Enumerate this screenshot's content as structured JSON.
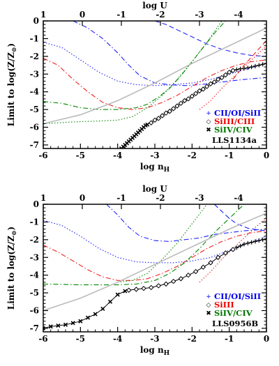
{
  "chart_data": [
    {
      "type": "line",
      "xlabel": "log n",
      "xlabel_sub": "H",
      "top_label": "log U",
      "ylabel": "Limit to log(Z/Z",
      "ylabel_sub": "⊙",
      "ylabel_end": ")",
      "xlim": [
        -6,
        0
      ],
      "ylim": [
        -7.2,
        0
      ],
      "x_ticks": [
        "-6",
        "-5",
        "-4",
        "-3",
        "-2",
        "-1",
        "0"
      ],
      "y_ticks": [
        "0",
        "-1",
        "-2",
        "-3",
        "-4",
        "-5",
        "-6",
        "-7"
      ],
      "top_ticks": [
        {
          "label": "1",
          "x": -6.0
        },
        {
          "label": "0",
          "x": -4.95
        },
        {
          "label": "-1",
          "x": -3.9
        },
        {
          "label": "-2",
          "x": -2.85
        },
        {
          "label": "-3",
          "x": -1.8
        },
        {
          "label": "-4",
          "x": -0.75
        }
      ],
      "legend": [
        {
          "label": "CII/OI/SiII",
          "color": "#0000ee",
          "marker": "+"
        },
        {
          "label": "SiIII/CIII",
          "color": "#ee0000",
          "marker": "◇"
        },
        {
          "label": "SiIV/CIV",
          "color": "#007700",
          "marker": "✖"
        }
      ],
      "panel_label": "LLS1134a",
      "series": [
        {
          "color": "#2020ff",
          "style": "dashdot",
          "x": [
            -5.2,
            -4.8,
            -4.4,
            -4.0,
            -3.7,
            -3.4,
            -3.0,
            -2.6,
            -2.2,
            -1.8,
            -1.4,
            -1.0,
            -0.6,
            -0.3,
            0.0
          ],
          "y": [
            0.0,
            -0.4,
            -1.0,
            -1.8,
            -2.5,
            -3.1,
            -3.5,
            -3.6,
            -3.65,
            -3.6,
            -3.5,
            -3.4,
            -3.3,
            -3.25,
            -3.2
          ]
        },
        {
          "color": "#2020ff",
          "style": "dash",
          "x": [
            -3.0,
            -2.7,
            -2.4,
            -2.0,
            -1.6,
            -1.2,
            -0.8,
            -0.4,
            0.0
          ],
          "y": [
            0.0,
            -0.2,
            -0.5,
            -0.9,
            -1.3,
            -1.6,
            -1.8,
            -1.95,
            -2.0
          ]
        },
        {
          "color": "#2020ff",
          "style": "dot",
          "x": [
            -6.0,
            -5.5,
            -5.0,
            -4.5,
            -4.0,
            -3.5,
            -3.0,
            -2.5,
            -2.0,
            -1.5,
            -1.0,
            -0.5,
            0.0
          ],
          "y": [
            -1.2,
            -1.5,
            -2.2,
            -2.9,
            -3.4,
            -3.6,
            -3.65,
            -3.6,
            -3.5,
            -3.3,
            -3.0,
            -2.7,
            -2.4
          ]
        },
        {
          "color": "#ee2020",
          "style": "dashdot",
          "x": [
            -6.0,
            -5.6,
            -5.2,
            -4.8,
            -4.4,
            -4.0,
            -3.6,
            -3.2,
            -2.8,
            -2.4,
            -2.0,
            -1.6,
            -1.2,
            -0.8,
            -0.4,
            0.0
          ],
          "y": [
            -2.1,
            -2.5,
            -3.3,
            -4.0,
            -4.6,
            -4.9,
            -5.0,
            -4.9,
            -4.6,
            -4.2,
            -3.7,
            -3.2,
            -2.8,
            -2.5,
            -2.3,
            -2.2
          ]
        },
        {
          "color": "#ee2020",
          "style": "dot",
          "x": [
            -1.8,
            -1.5,
            -1.2,
            -0.9,
            -0.6,
            -0.3,
            0.0
          ],
          "y": [
            -5.0,
            -4.5,
            -3.8,
            -3.2,
            -2.6,
            -2.0,
            -1.4
          ]
        },
        {
          "color": "#ee2020",
          "style": "dash",
          "x": [
            -0.9,
            -0.6,
            -0.3,
            0.0
          ],
          "y": [
            -3.3,
            -2.5,
            -1.8,
            -1.1
          ]
        },
        {
          "color": "#008800",
          "style": "dashdot",
          "x": [
            -6.0,
            -5.5,
            -5.0,
            -4.5,
            -4.0,
            -3.5,
            -3.2,
            -2.9,
            -2.6,
            -2.3,
            -2.0,
            -1.7,
            -1.4,
            -1.1
          ],
          "y": [
            -4.55,
            -4.65,
            -4.9,
            -5.0,
            -5.0,
            -4.9,
            -4.7,
            -4.3,
            -3.8,
            -3.1,
            -2.3,
            -1.5,
            -0.7,
            0.0
          ]
        },
        {
          "color": "#008800",
          "style": "dot",
          "x": [
            -6.0,
            -5.2,
            -4.5,
            -4.0,
            -3.6,
            -3.2,
            -2.8,
            -2.4,
            -2.0,
            -1.6,
            -1.2
          ],
          "y": [
            -5.8,
            -5.7,
            -5.65,
            -5.6,
            -5.4,
            -4.9,
            -4.2,
            -3.3,
            -2.3,
            -1.2,
            0.0
          ]
        },
        {
          "color": "#bbbbbb",
          "style": "solid",
          "x": [
            -6.0,
            -5.0,
            -4.0,
            -3.0,
            -2.0,
            -1.0,
            0.0
          ],
          "y": [
            -5.8,
            -5.3,
            -4.5,
            -3.5,
            -2.4,
            -1.4,
            -0.4
          ]
        }
      ],
      "markers": [
        {
          "color": "#000000",
          "marker": "x",
          "x": [
            -3.9,
            -3.85,
            -3.8,
            -3.75,
            -3.7,
            -3.65,
            -3.6,
            -3.55,
            -3.5,
            -3.45,
            -3.4,
            -3.35,
            -3.3,
            -3.25,
            -3.2
          ],
          "y": [
            -7.2,
            -7.1,
            -7.0,
            -6.9,
            -6.8,
            -6.7,
            -6.6,
            -6.5,
            -6.4,
            -6.3,
            -6.2,
            -6.1,
            -6.0,
            -5.9,
            -5.85
          ]
        },
        {
          "color": "#000000",
          "marker": "diamond",
          "x": [
            -3.1,
            -3.0,
            -2.9,
            -2.8,
            -2.7,
            -2.6,
            -2.5,
            -2.4,
            -2.3,
            -2.2,
            -2.1,
            -2.0,
            -1.9,
            -1.8,
            -1.7,
            -1.6,
            -1.5,
            -1.4,
            -1.3,
            -1.2,
            -1.1,
            -1.0,
            -0.9
          ],
          "y": [
            -5.75,
            -5.6,
            -5.5,
            -5.35,
            -5.2,
            -5.1,
            -4.95,
            -4.8,
            -4.65,
            -4.5,
            -4.4,
            -4.25,
            -4.1,
            -3.95,
            -3.85,
            -3.7,
            -3.55,
            -3.45,
            -3.3,
            -3.2,
            -3.05,
            -2.9,
            -2.8
          ]
        },
        {
          "color": "#000000",
          "marker": "plus",
          "x": [
            -0.8,
            -0.7,
            -0.6,
            -0.5,
            -0.4,
            -0.3,
            -0.2,
            -0.1,
            0.0
          ],
          "y": [
            -2.75,
            -2.7,
            -2.68,
            -2.65,
            -2.6,
            -2.55,
            -2.5,
            -2.45,
            -2.4
          ]
        }
      ]
    },
    {
      "type": "line",
      "xlabel": "log n",
      "xlabel_sub": "H",
      "top_label": "log U",
      "ylabel": "Limit to log(Z/Z",
      "ylabel_sub": "⊙",
      "ylabel_end": ")",
      "xlim": [
        -6,
        0
      ],
      "ylim": [
        -7.2,
        0
      ],
      "x_ticks": [
        "-6",
        "-5",
        "-4",
        "-3",
        "-2",
        "-1",
        "0"
      ],
      "y_ticks": [
        "0",
        "-1",
        "-2",
        "-3",
        "-4",
        "-5",
        "-6",
        "-7"
      ],
      "top_ticks": [
        {
          "label": "1",
          "x": -6.0
        },
        {
          "label": "0",
          "x": -4.95
        },
        {
          "label": "-1",
          "x": -3.9
        },
        {
          "label": "-2",
          "x": -2.85
        },
        {
          "label": "-3",
          "x": -1.8
        },
        {
          "label": "-4",
          "x": -0.75
        }
      ],
      "legend": [
        {
          "label": "CII/OI/SiII",
          "color": "#0000ee",
          "marker": "+"
        },
        {
          "label": "SiIII",
          "color": "#ee0000",
          "marker": "◇"
        },
        {
          "label": "SiIV/CIV",
          "color": "#007700",
          "marker": "✖"
        }
      ],
      "panel_label": "LLS0956B",
      "series": [
        {
          "color": "#2020ff",
          "style": "dashdot",
          "x": [
            -4.3,
            -4.0,
            -3.7,
            -3.4,
            -3.0,
            -2.6,
            -2.2,
            -1.8,
            -1.4,
            -1.0,
            -0.6,
            -0.3,
            0.0
          ],
          "y": [
            0.0,
            -0.6,
            -1.3,
            -1.8,
            -2.05,
            -2.1,
            -2.0,
            -1.9,
            -1.7,
            -1.6,
            -1.5,
            -1.45,
            -1.4
          ]
        },
        {
          "color": "#2020ff",
          "style": "dash",
          "x": [
            -1.4,
            -1.2,
            -1.0,
            -0.8,
            -0.5,
            -0.2,
            0.0
          ],
          "y": [
            0.0,
            -0.4,
            -0.8,
            -1.1,
            -1.35,
            -1.45,
            -1.5
          ]
        },
        {
          "color": "#2020ff",
          "style": "dot",
          "x": [
            -6.0,
            -5.5,
            -5.0,
            -4.5,
            -4.0,
            -3.5,
            -3.0,
            -2.5,
            -2.0,
            -1.5,
            -1.0,
            -0.5,
            0.0
          ],
          "y": [
            -0.9,
            -1.2,
            -1.8,
            -2.5,
            -3.0,
            -3.25,
            -3.3,
            -3.3,
            -3.2,
            -3.0,
            -2.6,
            -2.2,
            -1.8
          ]
        },
        {
          "color": "#ee2020",
          "style": "dashdot",
          "x": [
            -6.0,
            -5.6,
            -5.2,
            -4.8,
            -4.4,
            -4.0,
            -3.6,
            -3.2,
            -2.8,
            -2.4,
            -2.0,
            -1.6,
            -1.2,
            -0.8,
            -0.4,
            0.0
          ],
          "y": [
            -2.3,
            -2.7,
            -3.2,
            -3.7,
            -4.1,
            -4.3,
            -4.3,
            -4.2,
            -3.9,
            -3.5,
            -3.0,
            -2.5,
            -2.1,
            -1.8,
            -1.6,
            -1.5
          ]
        },
        {
          "color": "#ee2020",
          "style": "dot",
          "x": [
            -1.8,
            -1.5,
            -1.2,
            -0.9,
            -0.6,
            -0.3,
            0.0
          ],
          "y": [
            -4.4,
            -3.8,
            -3.1,
            -2.5,
            -1.9,
            -1.3,
            -0.8
          ]
        },
        {
          "color": "#008800",
          "style": "dashdot",
          "x": [
            -6.0,
            -5.5,
            -5.0,
            -4.5,
            -4.0,
            -3.5,
            -3.0,
            -2.6,
            -2.2,
            -1.8,
            -1.4,
            -1.0,
            -0.6
          ],
          "y": [
            -4.5,
            -4.52,
            -4.55,
            -4.55,
            -4.55,
            -4.5,
            -4.3,
            -3.9,
            -3.3,
            -2.5,
            -1.6,
            -0.8,
            0.0
          ]
        },
        {
          "color": "#008800",
          "style": "dot",
          "x": [
            -4.0,
            -3.6,
            -3.2,
            -2.8,
            -2.4,
            -2.0,
            -1.6
          ],
          "y": [
            -4.4,
            -4.3,
            -3.9,
            -3.1,
            -2.2,
            -1.1,
            0.0
          ]
        },
        {
          "color": "#bbbbbb",
          "style": "solid",
          "x": [
            -6.0,
            -5.0,
            -4.0,
            -3.0,
            -2.0,
            -1.0,
            0.0
          ],
          "y": [
            -6.0,
            -5.3,
            -4.4,
            -3.4,
            -2.4,
            -1.4,
            -0.5
          ]
        }
      ],
      "markers": [
        {
          "color": "#000000",
          "marker": "x",
          "x": [
            -6.0,
            -5.8,
            -5.6,
            -5.4,
            -5.2,
            -5.0,
            -4.8,
            -4.6,
            -4.4,
            -4.2,
            -4.0,
            -3.8
          ],
          "y": [
            -7.0,
            -6.9,
            -6.85,
            -6.8,
            -6.7,
            -6.6,
            -6.4,
            -6.2,
            -5.9,
            -5.5,
            -5.1,
            -4.9
          ]
        },
        {
          "color": "#000000",
          "marker": "diamond",
          "x": [
            -3.7,
            -3.5,
            -3.3,
            -3.1,
            -2.9,
            -2.7,
            -2.5,
            -2.3,
            -2.1,
            -1.9,
            -1.7,
            -1.5,
            -1.3,
            -1.1,
            -0.9
          ],
          "y": [
            -4.85,
            -4.8,
            -4.75,
            -4.7,
            -4.6,
            -4.5,
            -4.35,
            -4.2,
            -4.0,
            -3.8,
            -3.55,
            -3.3,
            -3.0,
            -2.75,
            -2.55
          ]
        },
        {
          "color": "#000000",
          "marker": "plus",
          "x": [
            -0.8,
            -0.7,
            -0.6,
            -0.5,
            -0.4,
            -0.3,
            -0.2,
            -0.1,
            0.0
          ],
          "y": [
            -2.45,
            -2.35,
            -2.25,
            -2.2,
            -2.15,
            -2.1,
            -2.05,
            -2.0,
            -1.95
          ]
        }
      ]
    }
  ]
}
